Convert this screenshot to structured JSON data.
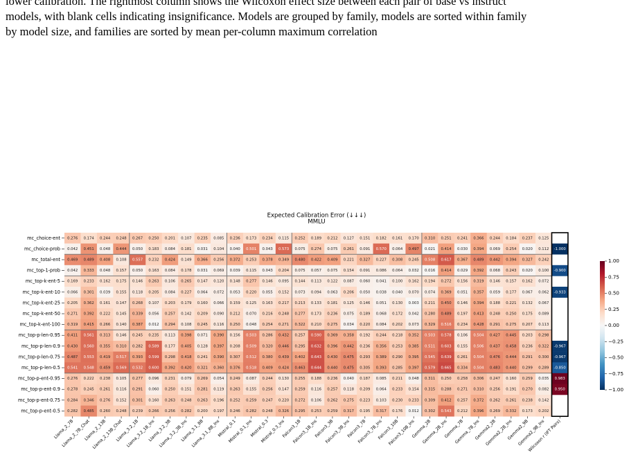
{
  "caption": [
    "lower calibration. The rightmost column shows the Wilcoxon effect size between each pair of base vs instruct",
    "models, with blank cells indicating insignificance. Models are grouped by family, models are sorted within family",
    "by model size, and families are sorted by mean per-column maximum correlation"
  ],
  "chart_data": {
    "type": "heatmap",
    "title": "Expected Calibration Error (↓↓↓)",
    "subtitle": "MMLU",
    "columns": [
      "Llama_2_7B",
      "Llama_2_7B_Chat",
      "Llama_2_13B",
      "Llama_2_13B_Chat",
      "Llama_3.2_1B",
      "Llama_3.2_1B_Ins",
      "Llama_3.2_3B",
      "Llama_3.2_3B_Ins",
      "Llama_3.1_8B",
      "Llama_3.1_8B_Ins",
      "Mistral_0.1",
      "Mistral_0.1_Ins",
      "Mistral_0.3",
      "Mistral_0.3_Ins",
      "Falcon3_1B",
      "Falcon3_1B_Ins",
      "Falcon3_3B",
      "Falcon3_3B_Ins",
      "Falcon3_7B",
      "Falcon3_7B_Ins",
      "Falcon3_10B",
      "Falcon3_10B_Ins",
      "Gemma_2B",
      "Gemma_2B_Ins",
      "Gemma_7B",
      "Gemma_7B_Ins",
      "Gemma2_2B",
      "Gemma2_2B_Ins",
      "Gemma2_9B",
      "Gemma2_9B_Ins"
    ],
    "rows": [
      "mc_choice-ent",
      "mc_choice-prob",
      "mc_total-ent",
      "mc_top-1-prob",
      "mc_top-k-ent-5",
      "mc_top-k-ent-10",
      "mc_top-k-ent-25",
      "mc_top-k-ent-50",
      "mc_top-k-ent-100",
      "mc_top-p-len-0.95",
      "mc_top-p-len-0.9",
      "mc_top-p-len-0.75",
      "mc_top-p-len-0.5",
      "mc_top-p-ent-0.95",
      "mc_top-p-ent-0.9",
      "mc_top-p-ent-0.75",
      "mc_top-p-ent-0.5"
    ],
    "values": [
      [
        0.276,
        0.174,
        0.244,
        0.248,
        0.267,
        0.25,
        0.201,
        0.107,
        0.235,
        0.085,
        0.236,
        0.173,
        0.234,
        0.115,
        0.252,
        0.189,
        0.212,
        0.127,
        0.151,
        0.182,
        0.161,
        0.17,
        0.31,
        0.251,
        0.241,
        0.366,
        0.244,
        0.184,
        0.237,
        0.125
      ],
      [
        0.042,
        0.451,
        0.048,
        0.444,
        0.05,
        0.183,
        0.084,
        0.181,
        0.031,
        0.104,
        0.04,
        0.501,
        0.043,
        0.573,
        0.075,
        0.274,
        0.075,
        0.261,
        0.091,
        0.57,
        0.064,
        0.497,
        0.021,
        0.414,
        0.03,
        0.394,
        0.069,
        0.254,
        0.02,
        0.112
      ],
      [
        0.469,
        0.489,
        0.408,
        0.108,
        0.557,
        0.232,
        0.424,
        0.149,
        0.366,
        0.256,
        0.372,
        0.253,
        0.378,
        0.349,
        0.48,
        0.422,
        0.409,
        0.221,
        0.327,
        0.227,
        0.308,
        0.245,
        0.508,
        0.617,
        0.367,
        0.489,
        0.442,
        0.394,
        0.327,
        0.242
      ],
      [
        0.042,
        0.333,
        0.048,
        0.157,
        0.05,
        0.163,
        0.084,
        0.178,
        0.031,
        0.069,
        0.039,
        0.115,
        0.043,
        0.204,
        0.075,
        0.057,
        0.075,
        0.154,
        0.091,
        0.086,
        0.064,
        0.032,
        0.016,
        0.414,
        0.029,
        0.392,
        0.068,
        0.243,
        0.02,
        0.1
      ],
      [
        0.169,
        0.233,
        0.162,
        0.175,
        0.146,
        0.263,
        0.106,
        0.265,
        0.147,
        0.12,
        0.148,
        0.277,
        0.146,
        0.095,
        0.144,
        0.113,
        0.122,
        0.087,
        0.06,
        0.041,
        0.1,
        0.162,
        0.194,
        0.272,
        0.156,
        0.319,
        0.146,
        0.157,
        0.162,
        0.072
      ],
      [
        0.066,
        0.301,
        0.039,
        0.155,
        0.118,
        0.205,
        0.084,
        0.227,
        0.064,
        0.072,
        0.053,
        0.22,
        0.055,
        0.152,
        0.073,
        0.094,
        0.063,
        0.206,
        0.05,
        0.038,
        0.04,
        0.07,
        0.074,
        0.369,
        0.051,
        0.357,
        0.059,
        0.177,
        0.067,
        0.062
      ],
      [
        0.205,
        0.362,
        0.161,
        0.147,
        0.268,
        0.107,
        0.203,
        0.179,
        0.16,
        0.066,
        0.159,
        0.125,
        0.163,
        0.217,
        0.213,
        0.133,
        0.181,
        0.125,
        0.146,
        0.051,
        0.13,
        0.003,
        0.211,
        0.45,
        0.146,
        0.394,
        0.188,
        0.221,
        0.132,
        0.067
      ],
      [
        0.271,
        0.392,
        0.222,
        0.145,
        0.339,
        0.056,
        0.257,
        0.142,
        0.209,
        0.09,
        0.212,
        0.07,
        0.216,
        0.248,
        0.277,
        0.173,
        0.236,
        0.075,
        0.189,
        0.068,
        0.172,
        0.042,
        0.28,
        0.489,
        0.197,
        0.413,
        0.248,
        0.25,
        0.175,
        0.089
      ],
      [
        0.319,
        0.415,
        0.266,
        0.14,
        0.387,
        0.012,
        0.294,
        0.108,
        0.245,
        0.116,
        0.25,
        0.048,
        0.254,
        0.271,
        0.322,
        0.21,
        0.275,
        0.034,
        0.22,
        0.084,
        0.202,
        0.073,
        0.329,
        0.516,
        0.234,
        0.428,
        0.291,
        0.275,
        0.207,
        0.113
      ],
      [
        0.411,
        0.561,
        0.313,
        0.146,
        0.245,
        0.235,
        0.113,
        0.398,
        0.071,
        0.39,
        0.156,
        0.503,
        0.286,
        0.432,
        0.257,
        0.59,
        0.369,
        0.358,
        0.192,
        0.244,
        0.218,
        0.352,
        0.503,
        0.578,
        0.106,
        0.504,
        0.427,
        0.445,
        0.203,
        0.298
      ],
      [
        0.43,
        0.56,
        0.355,
        0.31,
        0.282,
        0.589,
        0.177,
        0.405,
        0.128,
        0.397,
        0.208,
        0.509,
        0.32,
        0.446,
        0.295,
        0.632,
        0.396,
        0.442,
        0.236,
        0.356,
        0.253,
        0.385,
        0.511,
        0.603,
        0.155,
        0.506,
        0.437,
        0.458,
        0.236,
        0.322
      ],
      [
        0.487,
        0.553,
        0.419,
        0.517,
        0.393,
        0.599,
        0.298,
        0.418,
        0.241,
        0.39,
        0.307,
        0.512,
        0.38,
        0.439,
        0.402,
        0.643,
        0.43,
        0.475,
        0.293,
        0.389,
        0.29,
        0.395,
        0.545,
        0.639,
        0.261,
        0.504,
        0.476,
        0.444,
        0.291,
        0.3
      ],
      [
        0.541,
        0.548,
        0.459,
        0.569,
        0.532,
        0.6,
        0.392,
        0.42,
        0.321,
        0.36,
        0.376,
        0.518,
        0.409,
        0.424,
        0.463,
        0.644,
        0.44,
        0.475,
        0.305,
        0.393,
        0.285,
        0.397,
        0.579,
        0.665,
        0.334,
        0.504,
        0.483,
        0.44,
        0.299,
        0.289
      ],
      [
        0.276,
        0.222,
        0.238,
        0.105,
        0.277,
        0.096,
        0.231,
        0.079,
        0.269,
        0.054,
        0.249,
        0.087,
        0.244,
        0.13,
        0.255,
        0.188,
        0.236,
        0.04,
        0.187,
        0.085,
        0.211,
        0.048,
        0.311,
        0.25,
        0.258,
        0.306,
        0.247,
        0.16,
        0.259,
        0.035
      ],
      [
        0.278,
        0.245,
        0.261,
        0.116,
        0.291,
        0.06,
        0.25,
        0.151,
        0.281,
        0.119,
        0.263,
        0.155,
        0.256,
        0.147,
        0.259,
        0.116,
        0.257,
        0.118,
        0.209,
        0.064,
        0.233,
        0.154,
        0.315,
        0.288,
        0.271,
        0.31,
        0.256,
        0.191,
        0.27,
        0.082
      ],
      [
        0.284,
        0.346,
        0.276,
        0.152,
        0.301,
        0.16,
        0.263,
        0.248,
        0.263,
        0.196,
        0.252,
        0.259,
        0.247,
        0.22,
        0.272,
        0.106,
        0.262,
        0.275,
        0.223,
        0.103,
        0.23,
        0.233,
        0.309,
        0.412,
        0.257,
        0.372,
        0.262,
        0.261,
        0.238,
        0.142
      ],
      [
        0.282,
        0.485,
        0.26,
        0.248,
        0.239,
        0.266,
        0.256,
        0.282,
        0.2,
        0.197,
        0.246,
        0.282,
        0.248,
        0.326,
        0.295,
        0.253,
        0.259,
        0.317,
        0.195,
        0.317,
        0.176,
        0.012,
        0.302,
        0.543,
        0.212,
        0.396,
        0.269,
        0.332,
        0.173,
        0.202
      ]
    ],
    "wilcoxon": {
      "label": "Wilcoxon r (IFT Pairs)",
      "values": [
        null,
        -1.0,
        null,
        -0.9,
        null,
        -0.933,
        null,
        null,
        null,
        null,
        -0.967,
        -0.967,
        -0.85,
        0.983,
        0.95,
        null,
        null
      ]
    },
    "colormap": [
      "#053061",
      "#2166ac",
      "#4393c3",
      "#92c5de",
      "#d1e5f0",
      "#f7f7f7",
      "#fddbc7",
      "#f4a582",
      "#d6604d",
      "#b2182b",
      "#67001f"
    ],
    "clim": [
      -1,
      1
    ],
    "cticks": [
      {
        "value": 1,
        "label": "1.00"
      },
      {
        "value": 0.75,
        "label": "0.75"
      },
      {
        "value": 0.5,
        "label": "0.50"
      },
      {
        "value": 0.25,
        "label": "0.25"
      },
      {
        "value": 0,
        "label": "0.00"
      },
      {
        "value": -0.25,
        "label": "−0.25"
      },
      {
        "value": -0.5,
        "label": "−0.50"
      },
      {
        "value": -0.75,
        "label": "−0.75"
      },
      {
        "value": -1,
        "label": "−1.00"
      }
    ]
  }
}
